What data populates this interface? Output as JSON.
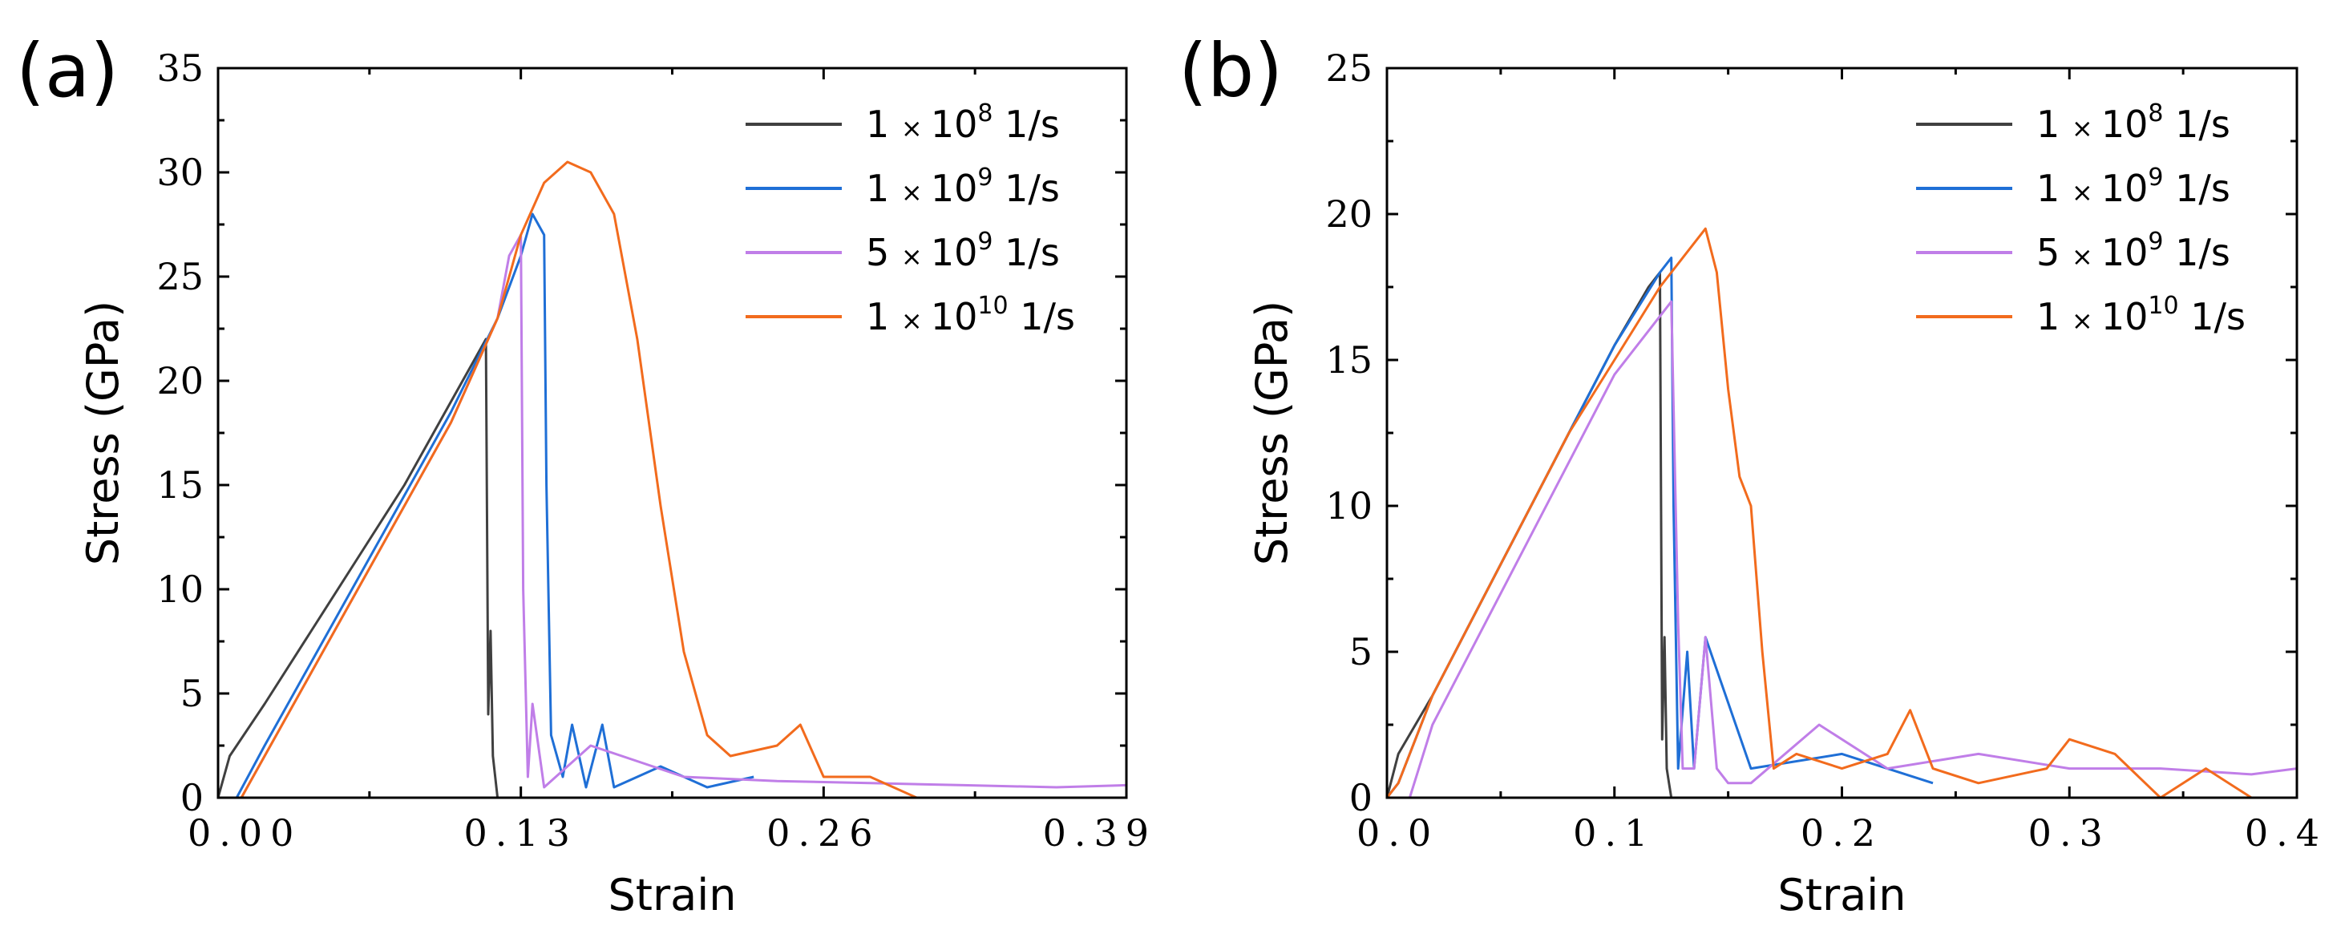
{
  "chart_data": [
    {
      "panel_label": "(a)",
      "type": "line",
      "xlabel": "Strain",
      "ylabel": "Stress (GPa)",
      "xlim": [
        0,
        0.39
      ],
      "ylim": [
        0,
        35
      ],
      "xticks": [
        0.0,
        0.13,
        0.26,
        0.39
      ],
      "xtick_labels": [
        "0.00",
        "0.13",
        "0.26",
        "0.39"
      ],
      "yticks": [
        0,
        5,
        10,
        15,
        20,
        25,
        30,
        35
      ],
      "ytick_labels": [
        "0",
        "5",
        "10",
        "15",
        "20",
        "25",
        "30",
        "35"
      ],
      "legend_position": "top-right",
      "series": [
        {
          "name": "1 × 10^8 1/s",
          "mantissa": "1",
          "times": "×",
          "base": "10",
          "exp": "8",
          "unit": "1/s",
          "color": "#404040",
          "x": [
            0.0,
            0.005,
            0.02,
            0.04,
            0.06,
            0.08,
            0.1,
            0.11,
            0.115,
            0.116,
            0.117,
            0.118,
            0.119,
            0.12
          ],
          "y": [
            0,
            2,
            4.5,
            8,
            11.5,
            15,
            19,
            21,
            22,
            4,
            8,
            2,
            1,
            0
          ]
        },
        {
          "name": "1 × 10^9 1/s",
          "mantissa": "1",
          "times": "×",
          "base": "10",
          "exp": "9",
          "unit": "1/s",
          "color": "#1f6fd6",
          "x": [
            0.0,
            0.008,
            0.02,
            0.04,
            0.06,
            0.08,
            0.1,
            0.12,
            0.13,
            0.135,
            0.14,
            0.141,
            0.143,
            0.148,
            0.152,
            0.158,
            0.165,
            0.17,
            0.19,
            0.21,
            0.23
          ],
          "y": [
            0,
            0,
            2.5,
            6.5,
            10.5,
            14.5,
            18.5,
            23,
            26,
            28,
            27,
            15,
            3,
            1,
            3.5,
            0.5,
            3.5,
            0.5,
            1.5,
            0.5,
            1
          ]
        },
        {
          "name": "5 × 10^9 1/s",
          "mantissa": "5",
          "times": "×",
          "base": "10",
          "exp": "9",
          "unit": "1/s",
          "color": "#c07ee8",
          "x": [
            0.0,
            0.01,
            0.02,
            0.04,
            0.06,
            0.08,
            0.1,
            0.12,
            0.125,
            0.13,
            0.131,
            0.133,
            0.135,
            0.14,
            0.16,
            0.2,
            0.24,
            0.28,
            0.32,
            0.36,
            0.39
          ],
          "y": [
            0,
            0,
            2,
            6,
            10,
            14,
            18,
            23,
            26,
            27,
            10,
            1,
            4.5,
            0.5,
            2.5,
            1,
            0.8,
            0.7,
            0.6,
            0.5,
            0.6
          ]
        },
        {
          "name": "1 × 10^10 1/s",
          "mantissa": "1",
          "times": "×",
          "base": "10",
          "exp": "10",
          "unit": "1/s",
          "color": "#f26b1d",
          "x": [
            0.0,
            0.01,
            0.02,
            0.04,
            0.06,
            0.08,
            0.1,
            0.12,
            0.13,
            0.14,
            0.15,
            0.16,
            0.17,
            0.18,
            0.19,
            0.2,
            0.21,
            0.22,
            0.24,
            0.25,
            0.26,
            0.28,
            0.3
          ],
          "y": [
            0,
            0,
            2,
            6,
            10,
            14,
            18,
            23,
            27,
            29.5,
            30.5,
            30,
            28,
            22,
            14,
            7,
            3,
            2,
            2.5,
            3.5,
            1,
            1,
            0
          ]
        }
      ]
    },
    {
      "panel_label": "(b)",
      "type": "line",
      "xlabel": "Strain",
      "ylabel": "Stress (GPa)",
      "xlim": [
        0,
        0.4
      ],
      "ylim": [
        0,
        25
      ],
      "xticks": [
        0.0,
        0.1,
        0.2,
        0.3,
        0.4
      ],
      "xtick_labels": [
        "0.0",
        "0.1",
        "0.2",
        "0.3",
        "0.4"
      ],
      "yticks": [
        0,
        5,
        10,
        15,
        20,
        25
      ],
      "ytick_labels": [
        "0",
        "5",
        "10",
        "15",
        "20",
        "25"
      ],
      "legend_position": "top-right",
      "series": [
        {
          "name": "1 × 10^8 1/s",
          "mantissa": "1",
          "times": "×",
          "base": "10",
          "exp": "8",
          "unit": "1/s",
          "color": "#404040",
          "x": [
            0.0,
            0.005,
            0.02,
            0.04,
            0.06,
            0.08,
            0.1,
            0.115,
            0.12,
            0.121,
            0.122,
            0.123,
            0.124,
            0.125
          ],
          "y": [
            0,
            1.5,
            3.5,
            6.5,
            9.5,
            12.5,
            15.5,
            17.5,
            18,
            2,
            5.5,
            1,
            0.5,
            0
          ]
        },
        {
          "name": "1 × 10^9 1/s",
          "mantissa": "1",
          "times": "×",
          "base": "10",
          "exp": "9",
          "unit": "1/s",
          "color": "#1f6fd6",
          "x": [
            0.0,
            0.005,
            0.02,
            0.04,
            0.06,
            0.08,
            0.1,
            0.12,
            0.125,
            0.126,
            0.128,
            0.132,
            0.135,
            0.14,
            0.16,
            0.2,
            0.24
          ],
          "y": [
            0,
            0.5,
            3.5,
            6.5,
            9.5,
            12.5,
            15.5,
            18,
            18.5,
            10,
            1,
            5,
            1,
            5.5,
            1,
            1.5,
            0.5
          ]
        },
        {
          "name": "5 × 10^9 1/s",
          "mantissa": "5",
          "times": "×",
          "base": "10",
          "exp": "9",
          "unit": "1/s",
          "color": "#c07ee8",
          "x": [
            0.0,
            0.01,
            0.02,
            0.04,
            0.06,
            0.08,
            0.1,
            0.12,
            0.125,
            0.128,
            0.13,
            0.135,
            0.14,
            0.145,
            0.15,
            0.16,
            0.19,
            0.22,
            0.26,
            0.3,
            0.34,
            0.38,
            0.4
          ],
          "y": [
            0,
            0,
            2.5,
            5.5,
            8.5,
            11.5,
            14.5,
            16.5,
            17,
            6,
            1,
            1,
            5.5,
            1,
            0.5,
            0.5,
            2.5,
            1,
            1.5,
            1,
            1,
            0.8,
            1
          ]
        },
        {
          "name": "1 × 10^10 1/s",
          "mantissa": "1",
          "times": "×",
          "base": "10",
          "exp": "10",
          "unit": "1/s",
          "color": "#f26b1d",
          "x": [
            0.0,
            0.005,
            0.02,
            0.04,
            0.06,
            0.08,
            0.1,
            0.12,
            0.13,
            0.14,
            0.145,
            0.15,
            0.155,
            0.16,
            0.165,
            0.17,
            0.18,
            0.2,
            0.22,
            0.23,
            0.24,
            0.26,
            0.29,
            0.3,
            0.32,
            0.34,
            0.36,
            0.38
          ],
          "y": [
            0,
            0.5,
            3.5,
            6.5,
            9.5,
            12.5,
            15,
            17.5,
            18.5,
            19.5,
            18,
            14,
            11,
            10,
            5,
            1,
            1.5,
            1,
            1.5,
            3,
            1,
            0.5,
            1,
            2,
            1.5,
            0,
            1,
            0
          ]
        }
      ]
    }
  ]
}
